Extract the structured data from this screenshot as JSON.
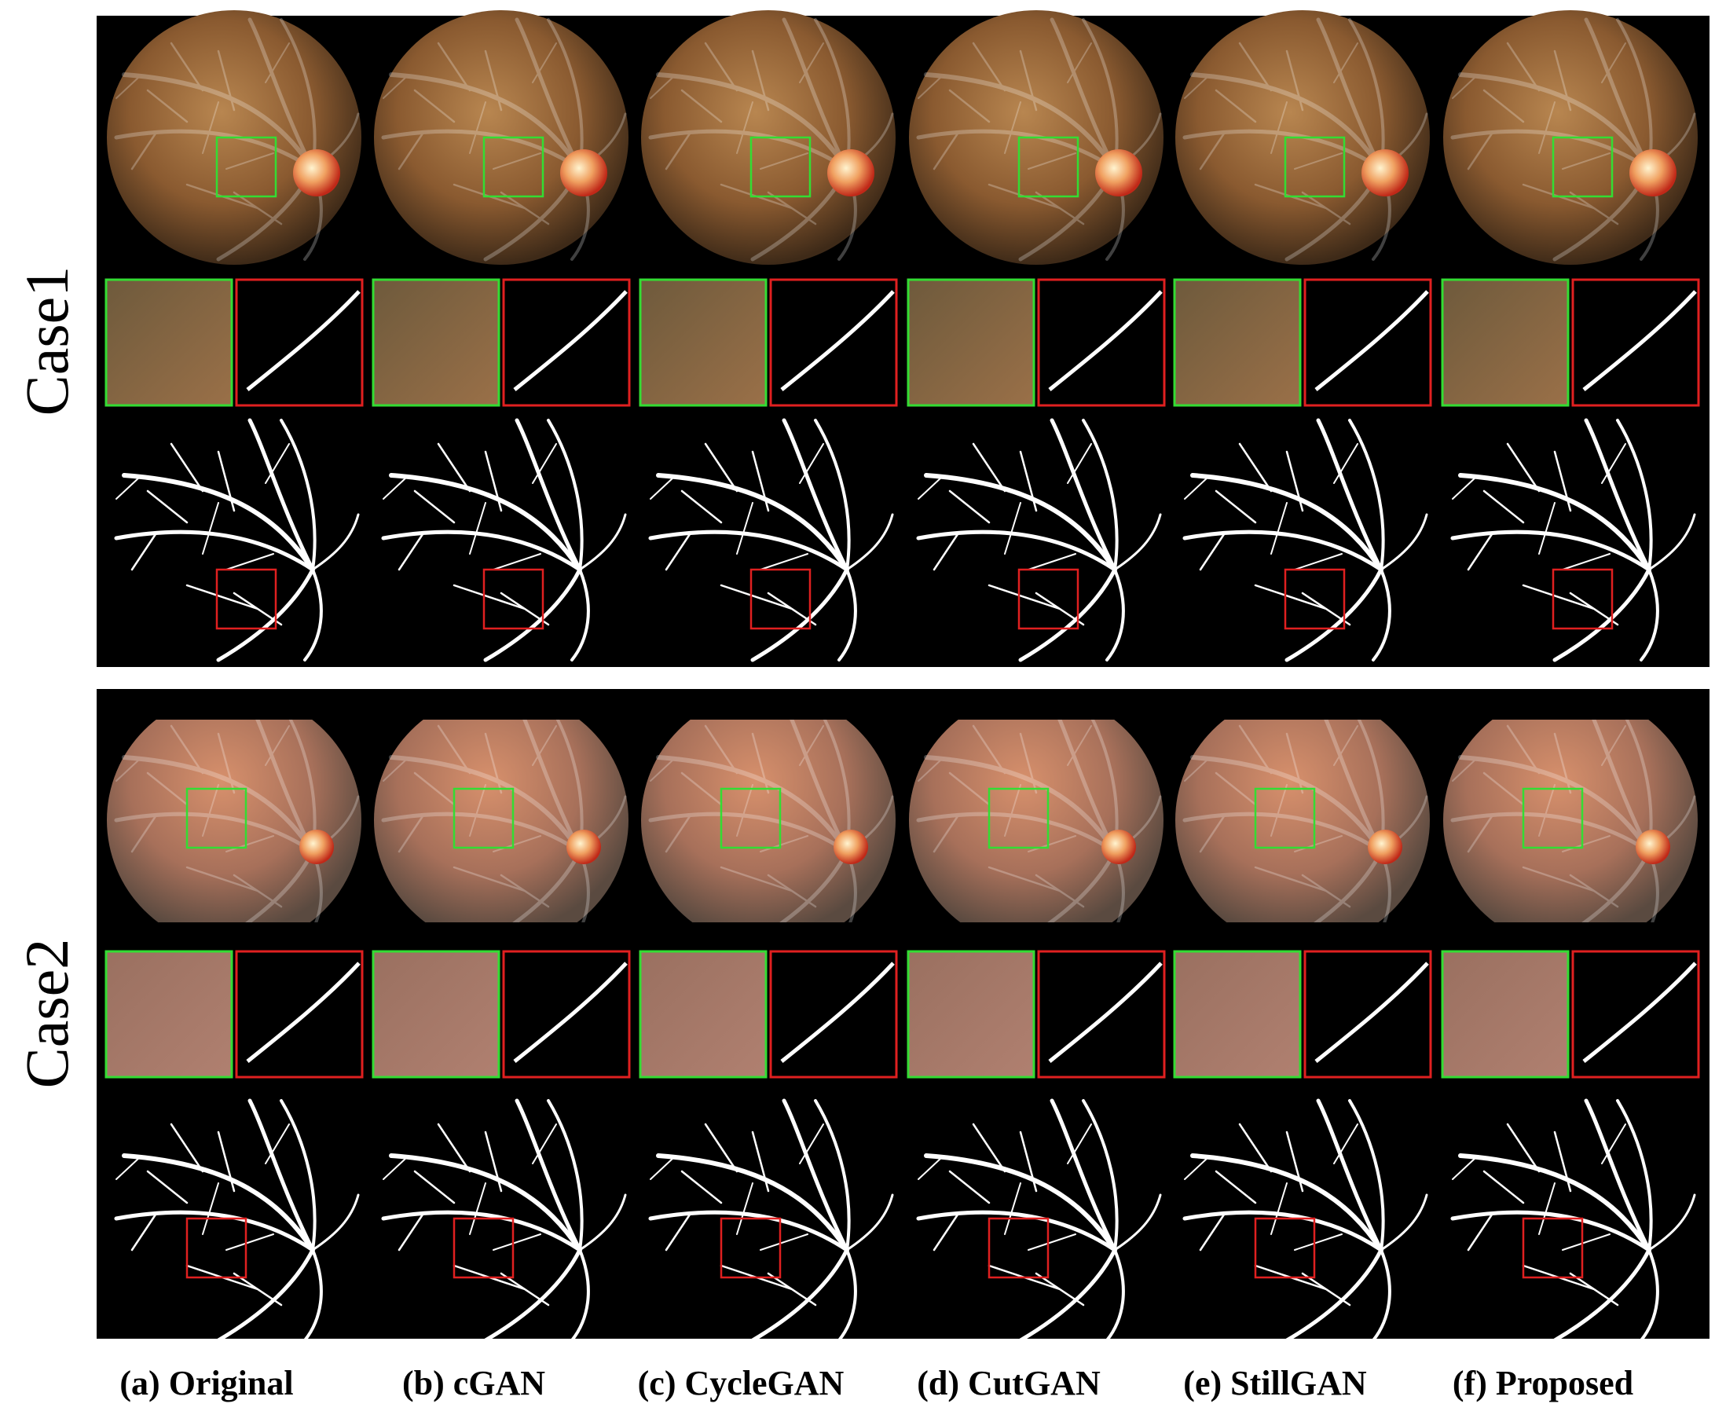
{
  "cases": [
    {
      "label": "Case1"
    },
    {
      "label": "Case2"
    }
  ],
  "columns": [
    "(a) Original",
    "(b) cGAN",
    "(c) CycleGAN",
    "(d) CutGAN",
    "(e) StillGAN",
    "(f) Proposed"
  ]
}
